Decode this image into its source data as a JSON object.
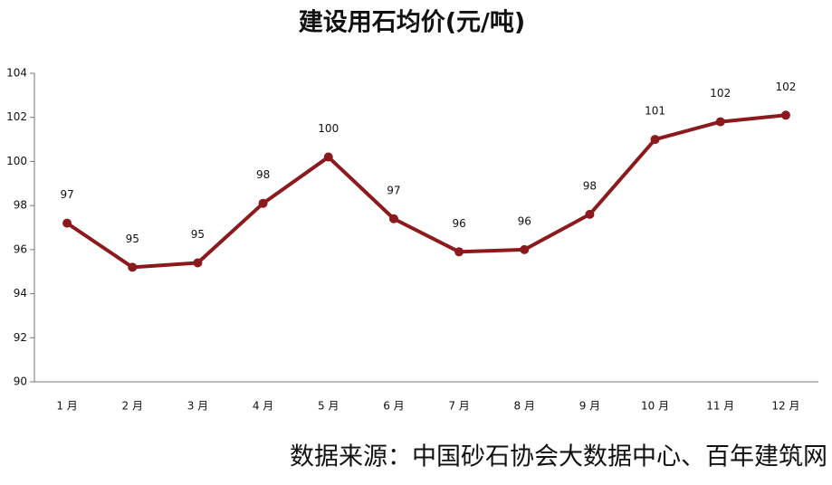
{
  "chart_data": {
    "type": "line",
    "title": "建设用石均价(元/吨)",
    "categories": [
      "1 月",
      "2 月",
      "3 月",
      "4 月",
      "5 月",
      "6 月",
      "7 月",
      "8 月",
      "9 月",
      "10 月",
      "11 月",
      "12 月"
    ],
    "series": [
      {
        "name": "建设用石均价",
        "color": "#8b1a1f",
        "values": [
          97.2,
          95.2,
          95.4,
          98.1,
          100.2,
          97.4,
          95.9,
          96.0,
          97.6,
          101.0,
          101.8,
          102.1
        ],
        "value_labels": [
          "97",
          "95",
          "95",
          "98",
          "100",
          "97",
          "96",
          "96",
          "98",
          "101",
          "102",
          "102"
        ]
      }
    ],
    "ylim": [
      90,
      104
    ],
    "yticks": [
      90,
      92,
      94,
      96,
      98,
      100,
      102,
      104
    ],
    "grid": false,
    "source": "数据来源：中国砂石协会大数据中心、百年建筑网"
  }
}
